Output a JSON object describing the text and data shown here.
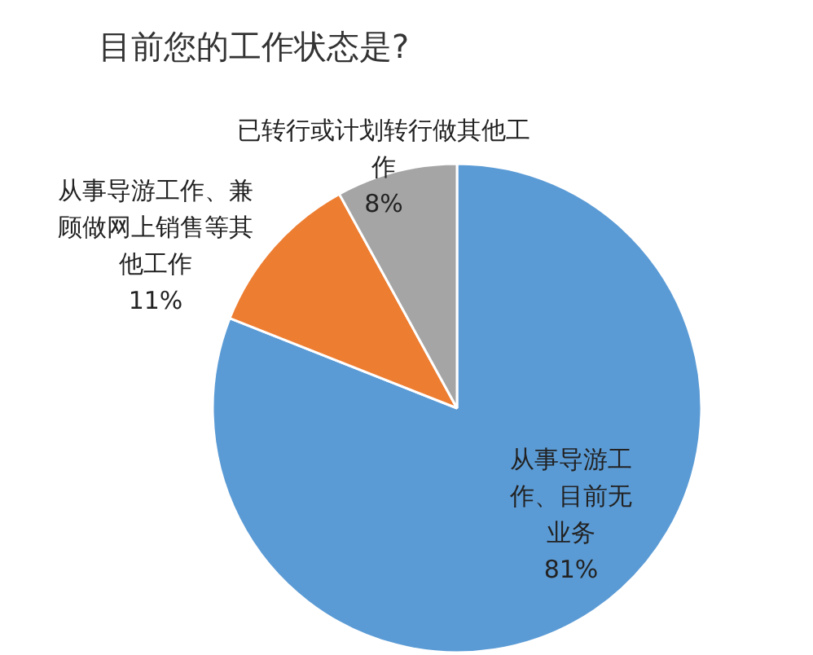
{
  "chart_data": {
    "type": "pie",
    "title": "目前您的工作状态是?",
    "categories": [
      "从事导游工作、目前无业务",
      "从事导游工作、兼顾做网上销售等其他工作",
      "已转行或计划转行做其他工作"
    ],
    "values": [
      81,
      11,
      8
    ],
    "colors": [
      "#5b9bd5",
      "#ed7d31",
      "#a5a5a5"
    ],
    "value_labels": [
      "81%",
      "11%",
      "8%"
    ]
  }
}
